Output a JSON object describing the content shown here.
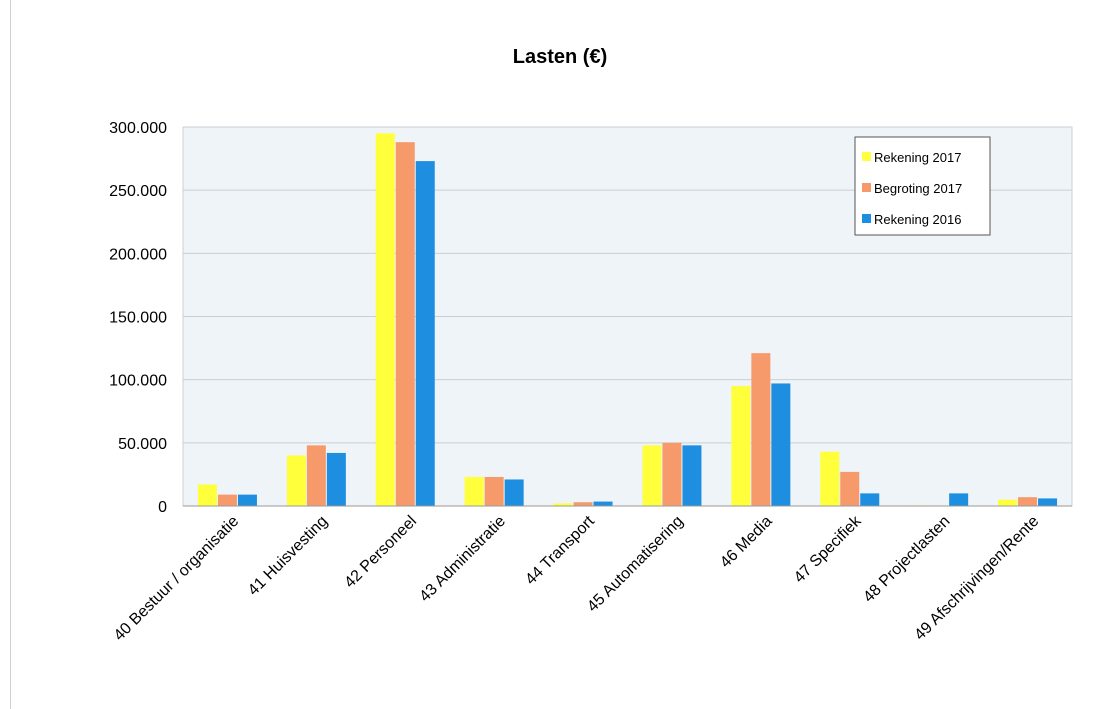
{
  "chart_data": {
    "type": "bar",
    "title": "Lasten (€)",
    "xlabel": "",
    "ylabel": "",
    "ylim": [
      0,
      300000
    ],
    "yticks": [
      "0",
      "50.000",
      "100.000",
      "150.000",
      "200.000",
      "250.000",
      "300.000"
    ],
    "grid": true,
    "legend_position": "top-right",
    "categories": [
      "40 Bestuur / organisatie",
      "41 Huisvesting",
      "42 Personeel",
      "43 Administratie",
      "44 Transport",
      "45 Automatisering",
      "46 Media",
      "47 Specifiek",
      "48 Projectlasten",
      "49 Afschrijvingen/Rente"
    ],
    "series": [
      {
        "name": "Rekening 2017",
        "color": "#ffff3c",
        "values": [
          17000,
          40000,
          295000,
          23000,
          2000,
          48000,
          95000,
          43000,
          500,
          5000
        ]
      },
      {
        "name": "Begroting 2017",
        "color": "#f79a6b",
        "values": [
          9000,
          48000,
          288000,
          23000,
          3000,
          50000,
          121000,
          27000,
          0,
          7000
        ]
      },
      {
        "name": "Rekening 2016",
        "color": "#1e8ee0",
        "values": [
          9000,
          42000,
          273000,
          21000,
          3500,
          48000,
          97000,
          10000,
          10000,
          6000
        ]
      }
    ]
  }
}
